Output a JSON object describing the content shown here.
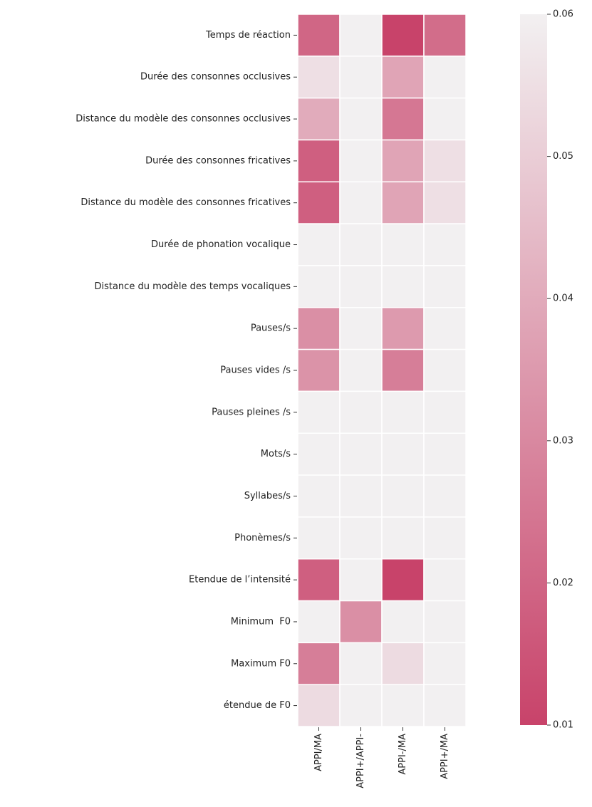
{
  "chart_data": {
    "type": "heatmap",
    "rows": [
      "Temps de réaction",
      "Durée des consonnes occlusives",
      "Distance du modèle des consonnes occlusives",
      "Durée des consonnes fricatives",
      "Distance du modèle des consonnes fricatives",
      "Durée de phonation vocalique",
      "Distance du modèle des temps vocaliques",
      "Pauses/s",
      "Pauses vides /s",
      "Pauses pleines /s",
      "Mots/s",
      "Syllabes/s",
      "Phonèmes/s",
      "Etendue de l’intensité",
      "Minimum  F0",
      "Maximum F0",
      "étendue de F0"
    ],
    "columns": [
      "APPI/MA",
      "APPI+/APPI-",
      "APPI-/MA",
      "APPI+/MA"
    ],
    "values": [
      [
        0.02,
        0.06,
        0.01,
        0.022
      ],
      [
        0.055,
        0.06,
        0.038,
        0.06
      ],
      [
        0.04,
        0.06,
        0.025,
        0.06
      ],
      [
        0.018,
        0.06,
        0.038,
        0.055
      ],
      [
        0.018,
        0.06,
        0.038,
        0.055
      ],
      [
        0.06,
        0.06,
        0.06,
        0.06
      ],
      [
        0.06,
        0.06,
        0.06,
        0.06
      ],
      [
        0.032,
        0.06,
        0.035,
        0.06
      ],
      [
        0.033,
        0.06,
        0.027,
        0.06
      ],
      [
        0.06,
        0.06,
        0.06,
        0.06
      ],
      [
        0.06,
        0.06,
        0.06,
        0.06
      ],
      [
        0.06,
        0.06,
        0.06,
        0.06
      ],
      [
        0.06,
        0.06,
        0.06,
        0.06
      ],
      [
        0.018,
        0.06,
        0.01,
        0.06
      ],
      [
        0.06,
        0.032,
        0.06,
        0.06
      ],
      [
        0.027,
        0.06,
        0.054,
        0.06
      ],
      [
        0.054,
        0.06,
        0.06,
        0.06
      ]
    ],
    "colormap": [
      "#c8436a",
      "#f2f0f1"
    ],
    "clim": [
      0.01,
      0.06
    ],
    "cticks": [
      0.01,
      0.02,
      0.03,
      0.04,
      0.05,
      0.06
    ]
  }
}
